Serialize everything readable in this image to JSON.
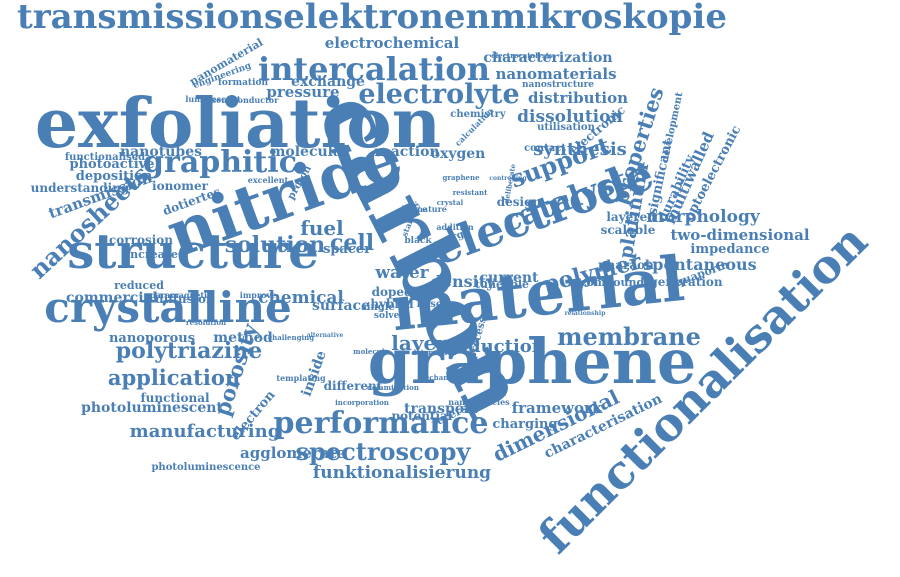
{
  "color": "#4a7fb5",
  "words": [
    "transmissionselektronenmikroskopie",
    "electrochemical",
    "intercalation",
    "characterization",
    "nanomaterials",
    "exfoliation",
    "electrolyte",
    "distribution",
    "dissolution",
    "nitride",
    "graphitic",
    "carbon",
    "properties",
    "support",
    "synthesis",
    "electronic",
    "catalyst",
    "electrode",
    "structure",
    "nanosheets",
    "solution",
    "cell",
    "fuel",
    "crystalline",
    "material",
    "graphene",
    "functionalisation",
    "polytriazine",
    "membrane",
    "layer",
    "reduction",
    "porosity",
    "application",
    "performance",
    "spectroscopy",
    "funktionalisierung",
    "dimensional",
    "manufacturing",
    "photoluminescent",
    "agglomerate",
    "transmission",
    "polymer",
    "spontaneous",
    "morphology",
    "two-dimensional",
    "impedance",
    "platinum",
    "multiwalled",
    "durability",
    "significant",
    "optoelectronic",
    "framework",
    "characterisation",
    "transport",
    "charging",
    "density",
    "current",
    "water",
    "chemical",
    "commercial",
    "method",
    "nanoporous",
    "functional",
    "pressure",
    "exchange",
    "molecular",
    "reaction",
    "oxygen",
    "nanotubes",
    "photoactive",
    "deposition",
    "understanding",
    "functionalised",
    "nanomaterial",
    "ionomer",
    "dotiertes",
    "corrosion",
    "increase",
    "reduced",
    "diffusion",
    "layered",
    "scalable",
    "pharaoh",
    "generation",
    "aquaporin",
    "compound",
    "reversible",
    "potential",
    "electron",
    "inside",
    "different",
    "surface",
    "spacer",
    "doped",
    "hybrid",
    "design",
    "contact",
    "tuneable",
    "photoluminescence",
    "chemistry",
    "utilisation",
    "nanostructure",
    "development",
    "formation",
    "engineering",
    "semiconductor",
    "luminescent",
    "proton",
    "excellent",
    "paramagnetic",
    "resolution",
    "improve",
    "templating",
    "challenging",
    "alternative",
    "molecule",
    "delamination",
    "determined",
    "mechanical",
    "incorporation",
    "nanoparticles",
    "relationship",
    "electrocatalysts",
    "calculation",
    "energy",
    "addition",
    "based",
    "single",
    "solvent",
    "processes",
    "black",
    "stability",
    "device",
    "nature",
    "crystal",
    "controlling",
    "deliberate",
    "graphene",
    "resistant"
  ]
}
